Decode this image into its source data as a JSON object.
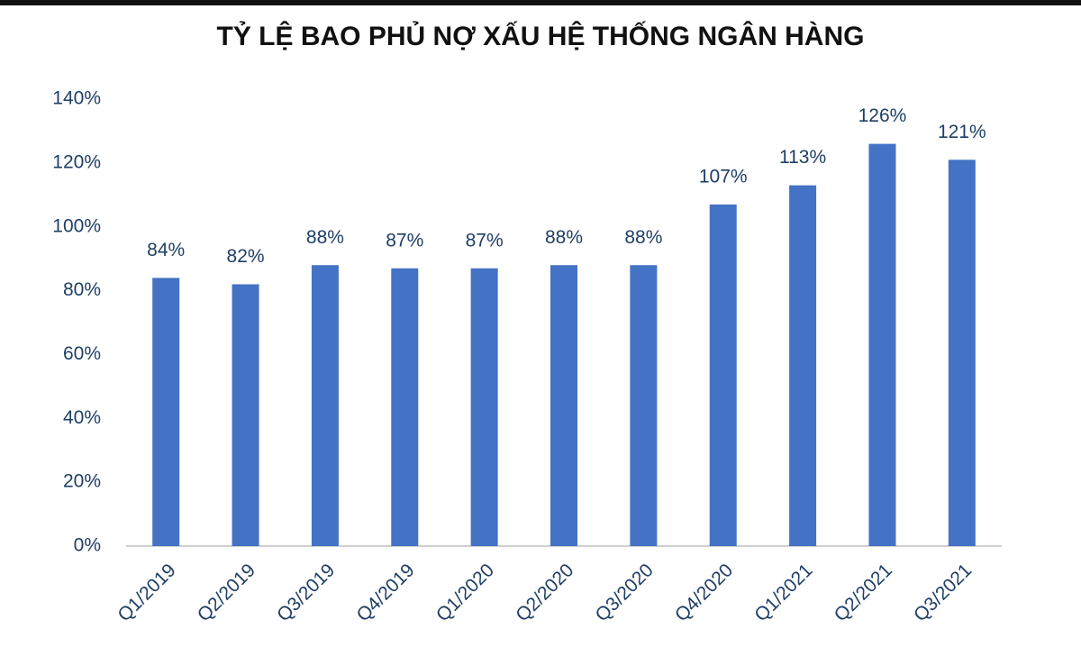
{
  "chart_data": {
    "type": "bar",
    "title": "TỶ LỆ BAO PHỦ NỢ XẤU HỆ THỐNG NGÂN HÀNG",
    "categories": [
      "Q1/2019",
      "Q2/2019",
      "Q3/2019",
      "Q4/2019",
      "Q1/2020",
      "Q2/2020",
      "Q3/2020",
      "Q4/2020",
      "Q1/2021",
      "Q2/2021",
      "Q3/2021"
    ],
    "values": [
      84,
      82,
      88,
      87,
      87,
      88,
      88,
      107,
      113,
      126,
      121
    ],
    "value_labels": [
      "84%",
      "82%",
      "88%",
      "87%",
      "87%",
      "88%",
      "88%",
      "107%",
      "113%",
      "126%",
      "121%"
    ],
    "color": "#4472c4",
    "ylim": [
      0,
      140
    ],
    "yticks": [
      {
        "value": 0,
        "label": "0%"
      },
      {
        "value": 20,
        "label": "20%"
      },
      {
        "value": 40,
        "label": "40%"
      },
      {
        "value": 60,
        "label": "60%"
      },
      {
        "value": 80,
        "label": "80%"
      },
      {
        "value": 100,
        "label": "100%"
      },
      {
        "value": 120,
        "label": "120%"
      },
      {
        "value": 140,
        "label": "140%"
      }
    ],
    "grid": false
  }
}
